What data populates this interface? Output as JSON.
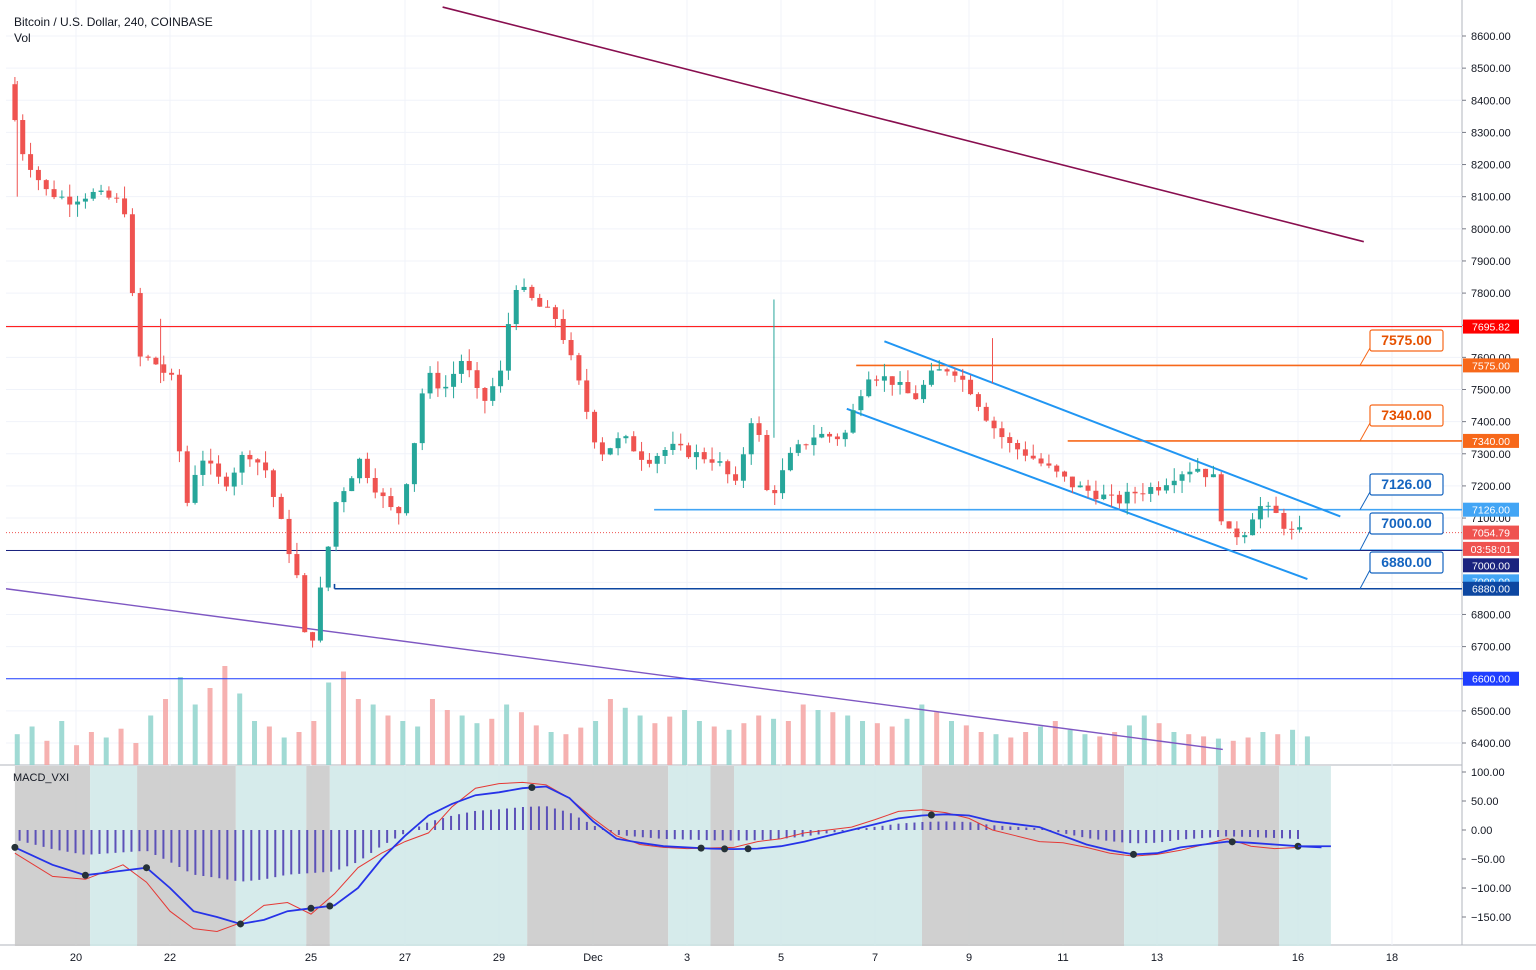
{
  "header": {
    "symbol_line": "Bitcoin / U.S. Dollar, 240, COINBASE",
    "volume_label": "Vol",
    "macd_label": "MACD_VXI"
  },
  "chart_data": [
    {
      "type": "candlestick",
      "title": "Bitcoin / U.S. Dollar, 240, COINBASE",
      "y_ticks": [
        "8600.00",
        "8500.00",
        "8400.00",
        "8300.00",
        "8200.00",
        "8100.00",
        "8000.00",
        "7900.00",
        "7800.00",
        "7700.00",
        "7600.00",
        "7500.00",
        "7400.00",
        "7300.00",
        "7200.00",
        "7100.00",
        "7000.00",
        "6900.00",
        "6800.00",
        "6700.00",
        "6600.00",
        "6500.00",
        "6400.00"
      ],
      "ylim": [
        6360,
        8690
      ],
      "x_ticks": [
        {
          "label": "20",
          "day": 20
        },
        {
          "label": "22",
          "day": 22
        },
        {
          "label": "25",
          "day": 25
        },
        {
          "label": "27",
          "day": 27
        },
        {
          "label": "29",
          "day": 29
        },
        {
          "label": "Dec",
          "day": 31
        },
        {
          "label": "3",
          "day": 33
        },
        {
          "label": "5",
          "day": 35
        },
        {
          "label": "7",
          "day": 37
        },
        {
          "label": "9",
          "day": 39
        },
        {
          "label": "11",
          "day": 41
        },
        {
          "label": "13",
          "day": 43
        },
        {
          "label": "16",
          "day": 46
        },
        {
          "label": "18",
          "day": 48
        }
      ],
      "price_points": [
        {
          "day": 18.7,
          "price": 8450
        },
        {
          "day": 19.0,
          "price": 8250
        },
        {
          "day": 19.5,
          "price": 8120
        },
        {
          "day": 20.0,
          "price": 8090
        },
        {
          "day": 20.5,
          "price": 8110
        },
        {
          "day": 21.0,
          "price": 8090
        },
        {
          "day": 21.2,
          "price": 8060
        },
        {
          "day": 21.3,
          "price": 7880
        },
        {
          "day": 21.5,
          "price": 7600
        },
        {
          "day": 21.8,
          "price": 7590
        },
        {
          "day": 22.2,
          "price": 7530
        },
        {
          "day": 22.5,
          "price": 7130
        },
        {
          "day": 22.8,
          "price": 7300
        },
        {
          "day": 23.3,
          "price": 7200
        },
        {
          "day": 23.8,
          "price": 7310
        },
        {
          "day": 24.2,
          "price": 7250
        },
        {
          "day": 24.6,
          "price": 7050
        },
        {
          "day": 24.9,
          "price": 6900
        },
        {
          "day": 25.1,
          "price": 6650
        },
        {
          "day": 25.4,
          "price": 6900
        },
        {
          "day": 25.7,
          "price": 7150
        },
        {
          "day": 26.2,
          "price": 7280
        },
        {
          "day": 26.6,
          "price": 7180
        },
        {
          "day": 27.0,
          "price": 7100
        },
        {
          "day": 27.3,
          "price": 7280
        },
        {
          "day": 27.6,
          "price": 7550
        },
        {
          "day": 28.0,
          "price": 7500
        },
        {
          "day": 28.4,
          "price": 7600
        },
        {
          "day": 28.8,
          "price": 7450
        },
        {
          "day": 29.2,
          "price": 7550
        },
        {
          "day": 29.5,
          "price": 7830
        },
        {
          "day": 30.0,
          "price": 7760
        },
        {
          "day": 30.4,
          "price": 7720
        },
        {
          "day": 30.8,
          "price": 7550
        },
        {
          "day": 31.3,
          "price": 7300
        },
        {
          "day": 31.8,
          "price": 7350
        },
        {
          "day": 32.3,
          "price": 7280
        },
        {
          "day": 32.8,
          "price": 7320
        },
        {
          "day": 33.3,
          "price": 7300
        },
        {
          "day": 33.8,
          "price": 7280
        },
        {
          "day": 34.2,
          "price": 7200
        },
        {
          "day": 34.6,
          "price": 7450
        },
        {
          "day": 34.9,
          "price": 7150
        },
        {
          "day": 35.4,
          "price": 7300
        },
        {
          "day": 35.9,
          "price": 7360
        },
        {
          "day": 36.5,
          "price": 7350
        },
        {
          "day": 37.0,
          "price": 7550
        },
        {
          "day": 37.5,
          "price": 7530
        },
        {
          "day": 38.0,
          "price": 7470
        },
        {
          "day": 38.4,
          "price": 7550
        },
        {
          "day": 38.8,
          "price": 7570
        },
        {
          "day": 39.2,
          "price": 7500
        },
        {
          "day": 39.6,
          "price": 7400
        },
        {
          "day": 40.0,
          "price": 7330
        },
        {
          "day": 40.4,
          "price": 7300
        },
        {
          "day": 40.9,
          "price": 7250
        },
        {
          "day": 41.4,
          "price": 7200
        },
        {
          "day": 41.8,
          "price": 7180
        },
        {
          "day": 42.3,
          "price": 7150
        },
        {
          "day": 42.7,
          "price": 7180
        },
        {
          "day": 43.2,
          "price": 7200
        },
        {
          "day": 43.6,
          "price": 7240
        },
        {
          "day": 44.0,
          "price": 7260
        },
        {
          "day": 44.4,
          "price": 7220
        },
        {
          "day": 44.6,
          "price": 7050
        },
        {
          "day": 45.0,
          "price": 7050
        },
        {
          "day": 45.3,
          "price": 7140
        },
        {
          "day": 45.7,
          "price": 7110
        },
        {
          "day": 46.0,
          "price": 7055
        }
      ],
      "volume_bars": [
        28,
        35,
        22,
        40,
        18,
        30,
        25,
        33,
        20,
        45,
        60,
        80,
        55,
        70,
        90,
        65,
        40,
        35,
        25,
        30,
        40,
        75,
        85,
        60,
        55,
        45,
        40,
        35,
        60,
        50,
        45,
        38,
        42,
        55,
        48,
        36,
        30,
        28,
        34,
        40,
        60,
        52,
        45,
        38,
        44,
        50,
        40,
        35,
        32,
        38,
        45,
        42,
        40,
        55,
        50,
        48,
        45,
        40,
        38,
        35,
        42,
        55,
        48,
        40,
        36,
        30,
        28,
        25,
        30,
        35,
        40,
        32,
        28,
        26,
        30,
        36,
        45,
        38,
        30,
        28,
        26,
        24,
        22,
        25,
        30,
        28,
        32,
        26
      ],
      "price_labels": [
        {
          "text": "7695.82",
          "price": 7695.82,
          "color": "#ff0000"
        },
        {
          "text": "7575.00",
          "price": 7575,
          "color": "#f7681a"
        },
        {
          "text": "7340.00",
          "price": 7340,
          "color": "#f7681a"
        },
        {
          "text": "7126.00",
          "price": 7126,
          "color": "#42a5f5"
        },
        {
          "text": "7054.79",
          "price": 7054.79,
          "color": "#ef5350"
        },
        {
          "text": "03:58:01",
          "price": 7004,
          "color": "#ef5350"
        },
        {
          "text": "7000.00",
          "price": 6953,
          "color": "#1a237e"
        },
        {
          "text": "7000.00",
          "price": 6903,
          "color": "#42a5f5"
        },
        {
          "text": "6880.00",
          "price": 6880,
          "color": "#0d47a1"
        },
        {
          "text": "6600.00",
          "price": 6600,
          "color": "#1e3eff"
        }
      ],
      "callouts": [
        {
          "text": "7575.00",
          "color": "#e65100",
          "border": "#f7681a"
        },
        {
          "text": "7340.00",
          "color": "#e65100",
          "border": "#f7681a"
        },
        {
          "text": "7126.00",
          "color": "#1565c0",
          "border": "#1565c0"
        },
        {
          "text": "7000.00",
          "color": "#1565c0",
          "border": "#1565c0"
        },
        {
          "text": "6880.00",
          "color": "#1565c0",
          "border": "#1565c0"
        }
      ],
      "colors": {
        "up": "#26a69a",
        "down": "#ef5350",
        "grid": "#eef0f4",
        "axis_text": "#131722"
      }
    },
    {
      "type": "line",
      "title": "MACD_VXI",
      "y_ticks": [
        "100.00",
        "50.00",
        "0.00",
        "−50.00",
        "−100.00",
        "−150.00"
      ],
      "ylim": [
        -190,
        110
      ],
      "macd": [
        [
          18.7,
          -30
        ],
        [
          19.5,
          -60
        ],
        [
          20.2,
          -78
        ],
        [
          21.0,
          -70
        ],
        [
          21.5,
          -65
        ],
        [
          22.0,
          -100
        ],
        [
          22.5,
          -140
        ],
        [
          23.0,
          -150
        ],
        [
          23.5,
          -162
        ],
        [
          24.0,
          -155
        ],
        [
          24.5,
          -140
        ],
        [
          25.0,
          -135
        ],
        [
          25.5,
          -130
        ],
        [
          26.0,
          -100
        ],
        [
          26.5,
          -50
        ],
        [
          27.0,
          -10
        ],
        [
          27.5,
          25
        ],
        [
          28.0,
          45
        ],
        [
          28.5,
          60
        ],
        [
          29.0,
          65
        ],
        [
          29.5,
          72
        ],
        [
          30.0,
          75
        ],
        [
          30.5,
          55
        ],
        [
          31.0,
          15
        ],
        [
          31.5,
          -15
        ],
        [
          32.0,
          -22
        ],
        [
          32.5,
          -28
        ],
        [
          33.0,
          -30
        ],
        [
          33.5,
          -32
        ],
        [
          34.0,
          -33
        ],
        [
          34.5,
          -32
        ],
        [
          35.0,
          -28
        ],
        [
          35.5,
          -20
        ],
        [
          36.0,
          -10
        ],
        [
          36.5,
          0
        ],
        [
          37.0,
          10
        ],
        [
          37.5,
          20
        ],
        [
          38.0,
          25
        ],
        [
          38.5,
          27
        ],
        [
          39.0,
          25
        ],
        [
          39.5,
          15
        ],
        [
          40.0,
          10
        ],
        [
          40.5,
          5
        ],
        [
          41.0,
          -10
        ],
        [
          41.5,
          -25
        ],
        [
          42.0,
          -35
        ],
        [
          42.5,
          -42
        ],
        [
          43.0,
          -40
        ],
        [
          43.5,
          -30
        ],
        [
          44.0,
          -25
        ],
        [
          44.5,
          -20
        ],
        [
          45.0,
          -22
        ],
        [
          45.5,
          -25
        ],
        [
          46.0,
          -28
        ],
        [
          46.5,
          -30
        ]
      ],
      "signal": [
        [
          18.7,
          -40
        ],
        [
          19.5,
          -80
        ],
        [
          20.2,
          -85
        ],
        [
          21.0,
          -60
        ],
        [
          21.5,
          -90
        ],
        [
          22.0,
          -140
        ],
        [
          22.5,
          -170
        ],
        [
          23.0,
          -175
        ],
        [
          23.5,
          -160
        ],
        [
          24.0,
          -130
        ],
        [
          24.5,
          -125
        ],
        [
          25.0,
          -145
        ],
        [
          25.5,
          -110
        ],
        [
          26.0,
          -65
        ],
        [
          26.5,
          -40
        ],
        [
          27.0,
          -20
        ],
        [
          27.5,
          -5
        ],
        [
          28.0,
          40
        ],
        [
          28.5,
          72
        ],
        [
          29.0,
          80
        ],
        [
          29.5,
          82
        ],
        [
          30.0,
          78
        ],
        [
          30.5,
          55
        ],
        [
          31.0,
          20
        ],
        [
          31.5,
          -10
        ],
        [
          32.0,
          -25
        ],
        [
          32.5,
          -30
        ],
        [
          33.0,
          -32
        ],
        [
          33.5,
          -31
        ],
        [
          34.0,
          -30
        ],
        [
          34.5,
          -20
        ],
        [
          35.0,
          -15
        ],
        [
          35.5,
          -5
        ],
        [
          36.0,
          0
        ],
        [
          36.5,
          5
        ],
        [
          37.0,
          18
        ],
        [
          37.5,
          32
        ],
        [
          38.0,
          35
        ],
        [
          38.5,
          30
        ],
        [
          39.0,
          20
        ],
        [
          39.5,
          0
        ],
        [
          40.0,
          -10
        ],
        [
          40.5,
          -20
        ],
        [
          41.0,
          -22
        ],
        [
          41.5,
          -30
        ],
        [
          42.0,
          -40
        ],
        [
          42.5,
          -45
        ],
        [
          43.0,
          -42
        ],
        [
          43.5,
          -35
        ],
        [
          44.0,
          -25
        ],
        [
          44.5,
          -15
        ],
        [
          45.0,
          -28
        ],
        [
          45.5,
          -32
        ],
        [
          46.0,
          -30
        ]
      ],
      "cross_days": [
        18.7,
        20.2,
        21.5,
        23.5,
        25.0,
        25.4,
        29.7,
        33.3,
        33.8,
        34.3,
        38.2,
        42.5,
        44.6,
        46.0
      ],
      "colors": {
        "macd": "#2633e8",
        "signal": "#e53935",
        "histogram": "#5c51b8",
        "shade_gray": "#c8c8c8",
        "shade_teal": "#cfe8e8"
      }
    }
  ]
}
